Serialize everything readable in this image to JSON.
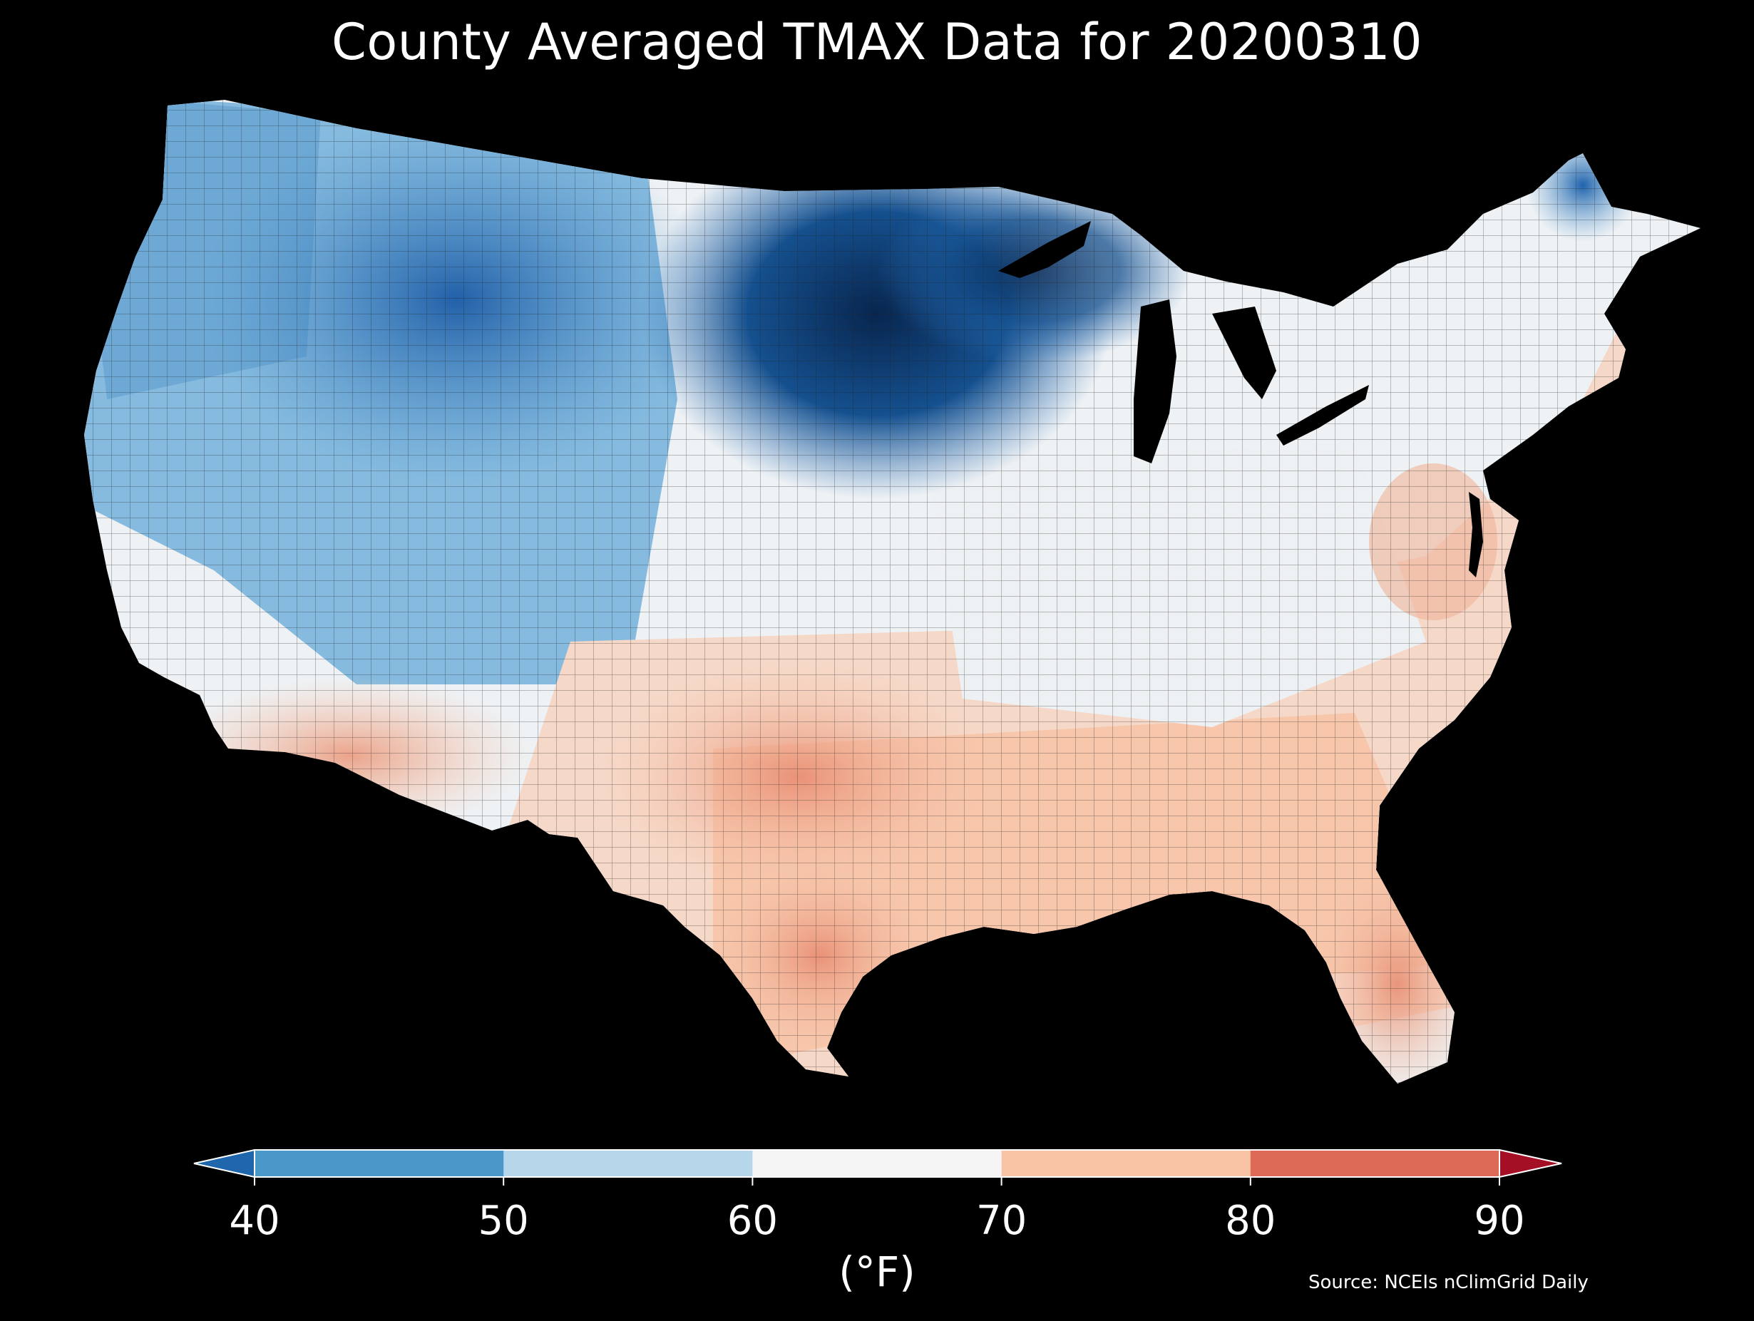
{
  "title": "County Averaged TMAX Data for 20200310",
  "colorbar": {
    "ticks": [
      "40",
      "50",
      "60",
      "70",
      "80",
      "90"
    ],
    "units": "(°F)",
    "bins": [
      {
        "range": "<40",
        "color": "#2066ac"
      },
      {
        "range": "40-50",
        "color": "#4a97c9"
      },
      {
        "range": "50-60",
        "color": "#b6d6ea"
      },
      {
        "range": "60-70",
        "color": "#f5f5f5"
      },
      {
        "range": "70-80",
        "color": "#f9c3a6"
      },
      {
        "range": "80-90",
        "color": "#dd6a56"
      },
      {
        "range": ">90",
        "color": "#a50f26"
      }
    ]
  },
  "source": "Source: NCEIs nClimGrid Daily",
  "map_regions": [
    {
      "region": "northern-plains-upper-midwest",
      "color": "#0d3b6e"
    },
    {
      "region": "northern-rockies",
      "color": "#2a6db3"
    },
    {
      "region": "pacific-northwest",
      "color": "#6aa8d4"
    },
    {
      "region": "great-basin-central-rockies",
      "color": "#7fb7dc"
    },
    {
      "region": "northern-great-lakes",
      "color": "#3a80c0"
    },
    {
      "region": "northern-maine",
      "color": "#2d70b5"
    },
    {
      "region": "northeast",
      "color": "#f3e1d8"
    },
    {
      "region": "ohio-valley-central",
      "color": "#f0f3f6"
    },
    {
      "region": "southern-plains",
      "color": "#f5b899"
    },
    {
      "region": "southeast-gulf",
      "color": "#f7c6ab"
    },
    {
      "region": "florida",
      "color": "#f1a685"
    },
    {
      "region": "desert-southwest",
      "color": "#f5c0a2"
    },
    {
      "region": "california-coast",
      "color": "#eaf0f5"
    }
  ]
}
